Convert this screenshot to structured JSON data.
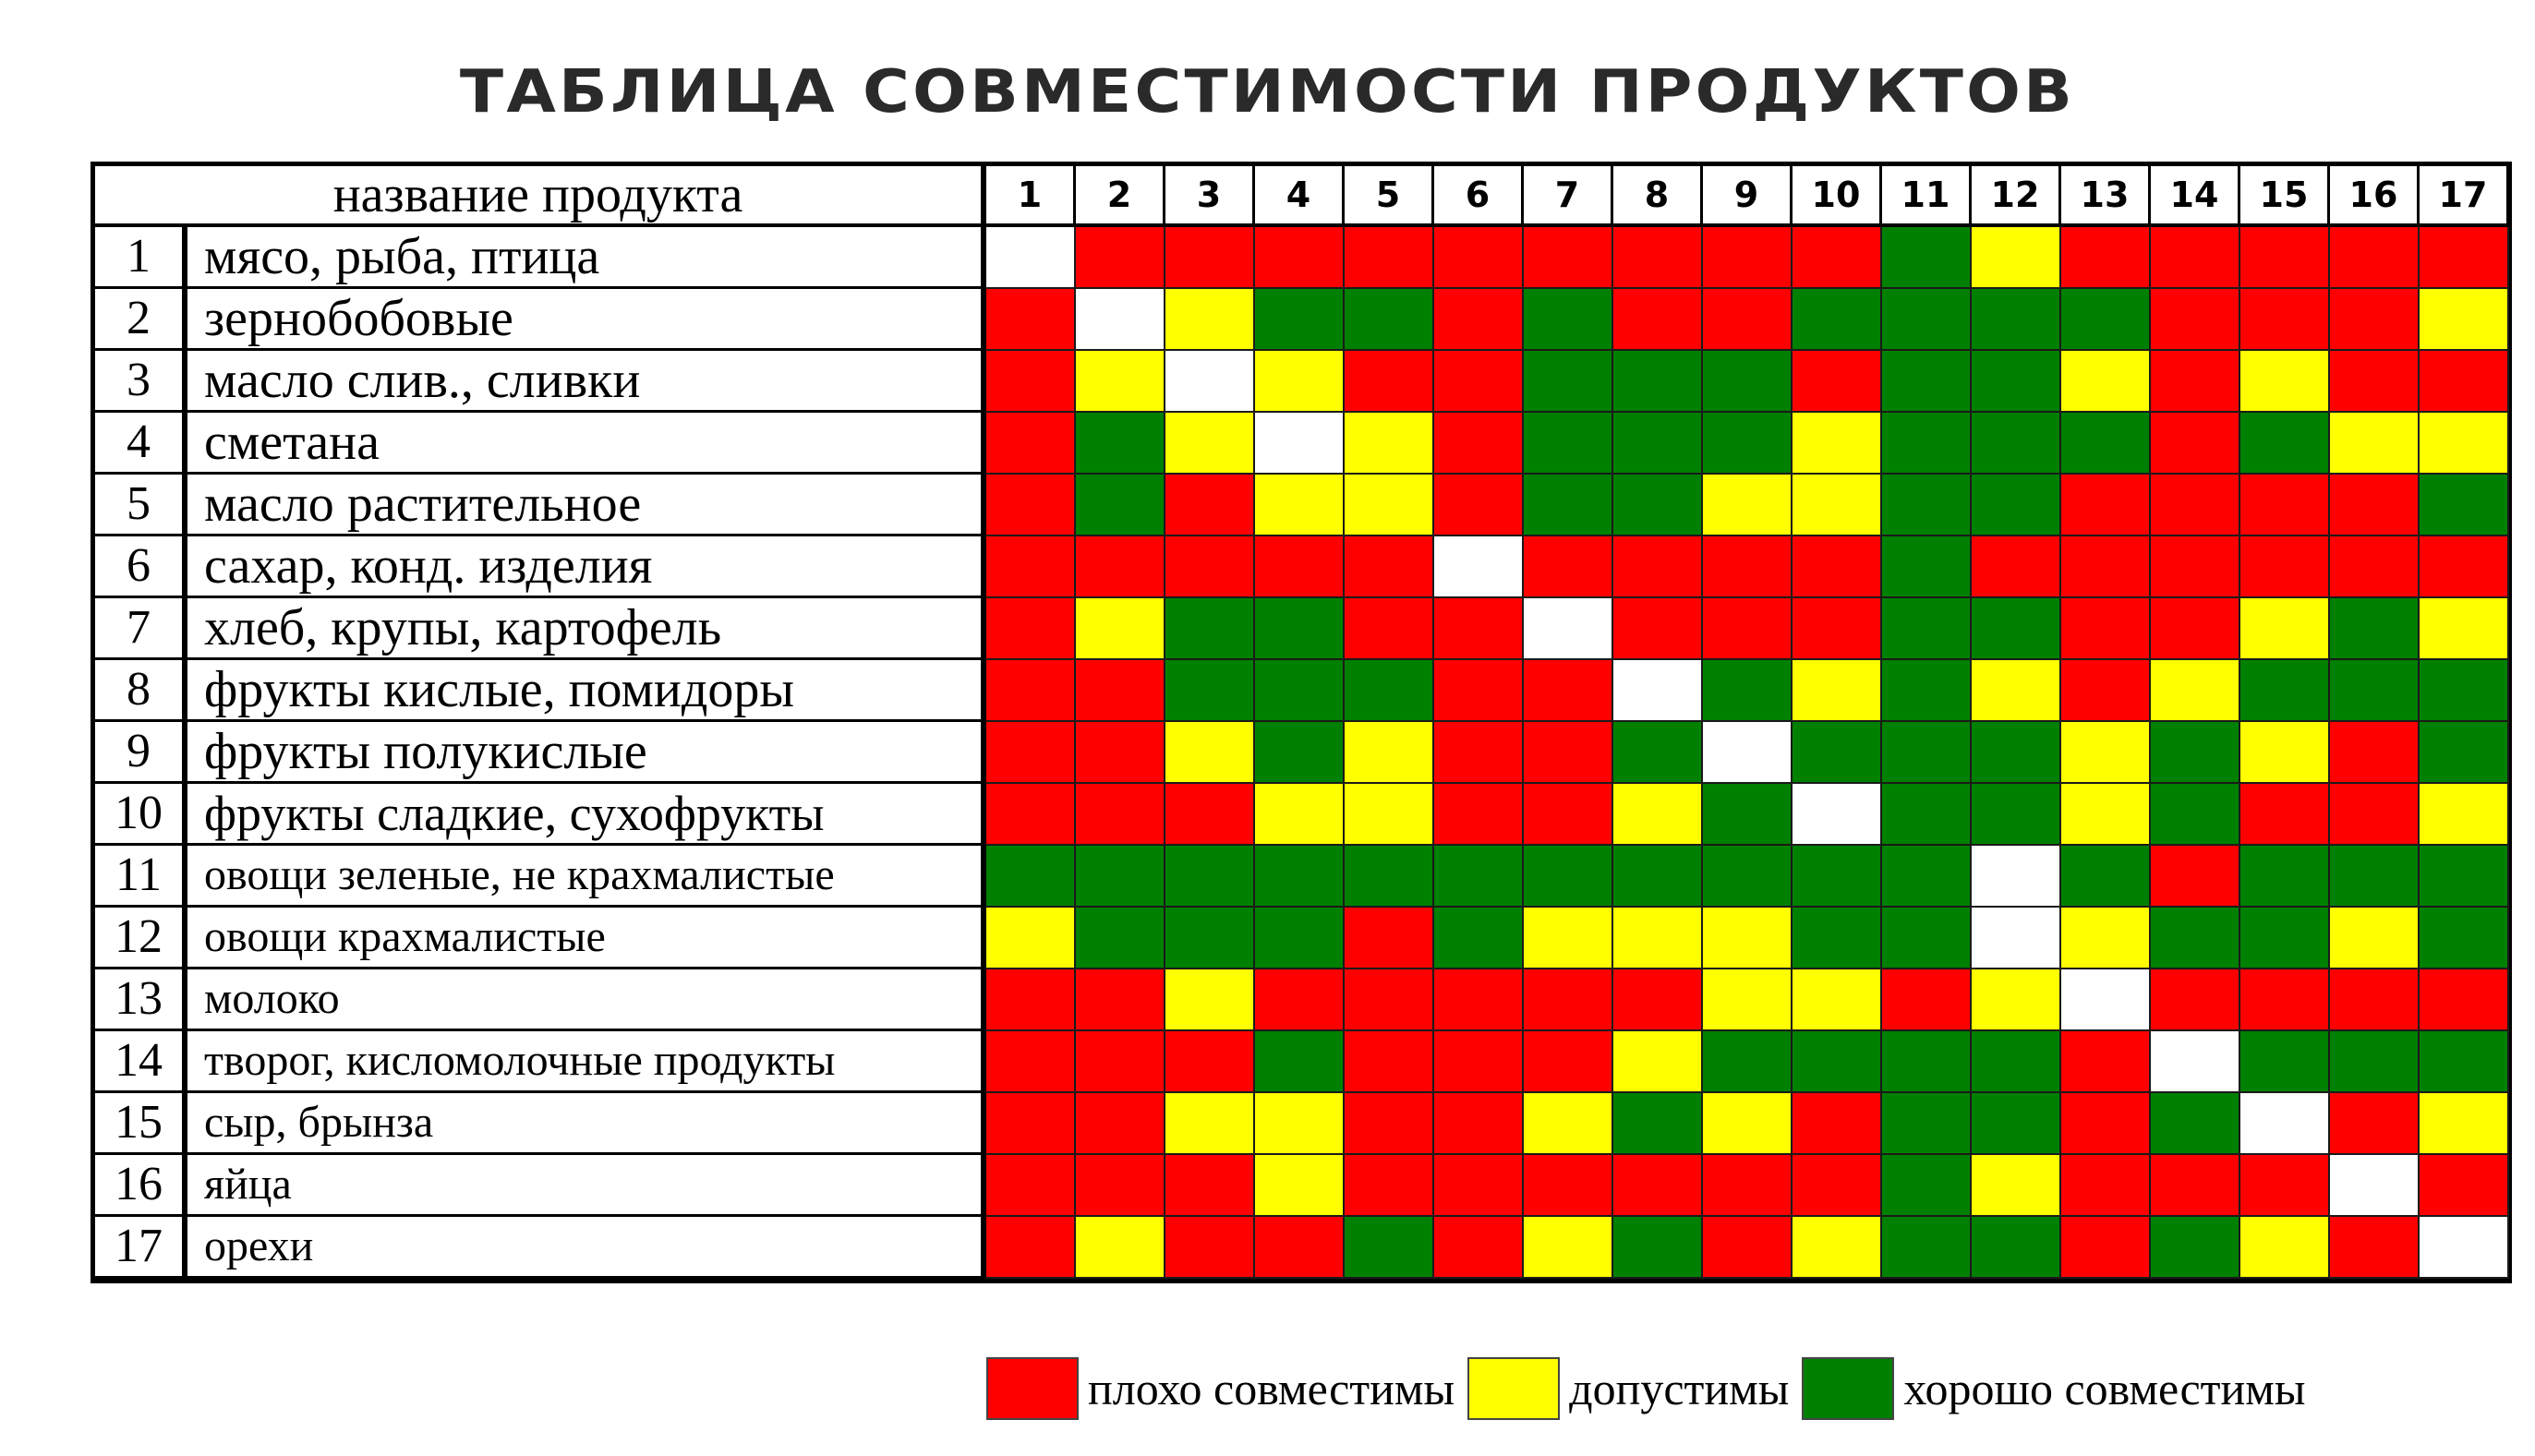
{
  "title": "ТАБЛИЦА СОВМЕСТИМОСТИ ПРОДУКТОВ",
  "header": {
    "name_label": "название продукта",
    "numbers": [
      "1",
      "2",
      "3",
      "4",
      "5",
      "6",
      "7",
      "8",
      "9",
      "10",
      "11",
      "12",
      "13",
      "14",
      "15",
      "16",
      "17"
    ]
  },
  "colors": {
    "r": "#ff0000",
    "y": "#ffff00",
    "g": "#008000",
    "w": "#ffffff"
  },
  "rows": [
    {
      "num": "1",
      "name": "мясо, рыба, птица",
      "cells": "wrrrrrrrrrgyrrrrr"
    },
    {
      "num": "2",
      "name": "зернобобовые",
      "cells": "rwyggrgrrggggrrry"
    },
    {
      "num": "3",
      "name": "масло слив., сливки",
      "cells": "rywyrrgggrggyryrr"
    },
    {
      "num": "4",
      "name": "сметана",
      "cells": "rgywyrgggygggrgyy"
    },
    {
      "num": "5",
      "name": "масло растительное",
      "cells": "rgryyrggyyggrrrrg"
    },
    {
      "num": "6",
      "name": "сахар, конд. изделия",
      "cells": "rrrrrwrrrrgrrrrrr"
    },
    {
      "num": "7",
      "name": "хлеб, крупы, картофель",
      "cells": "ryggrrwrrrggrrygy"
    },
    {
      "num": "8",
      "name": "фрукты кислые, помидоры",
      "cells": "rrgggrrwgygyryggg"
    },
    {
      "num": "9",
      "name": "фрукты полукислые",
      "cells": "rrygyrrgwgggygyrg"
    },
    {
      "num": "10",
      "name": "фрукты сладкие, сухофрукты",
      "cells": "rrryyrrygwggygrry"
    },
    {
      "num": "11",
      "name": "овощи зеленые, не крахмалистые",
      "cells": "gggggggggggwgrggg"
    },
    {
      "num": "12",
      "name": "овощи крахмалистые",
      "cells": "ygggrgyyyggwyggyg"
    },
    {
      "num": "13",
      "name": "молоко",
      "cells": "rryrrrrryyrywrrrr"
    },
    {
      "num": "14",
      "name": "творог, кисломолочные продукты",
      "cells": "rrrgrrryggggrwggg"
    },
    {
      "num": "15",
      "name": "сыр, брынза",
      "cells": "rryyrrygyrggrgwry"
    },
    {
      "num": "16",
      "name": "яйца",
      "cells": "rrryrrrrrrgyrrrwr"
    },
    {
      "num": "17",
      "name": "орехи",
      "cells": "ryrrgrygryggrgyrw"
    }
  ],
  "legend": [
    {
      "color": "#ff0000",
      "label": "плохо совместимы"
    },
    {
      "color": "#ffff00",
      "label": "допустимы"
    },
    {
      "color": "#008000",
      "label": "хорошо совместимы"
    }
  ]
}
